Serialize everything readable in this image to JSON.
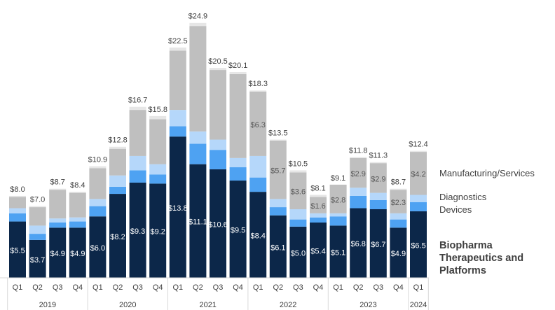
{
  "chart_data": {
    "type": "stacked_bar",
    "categories": [
      "Q1",
      "Q2",
      "Q3",
      "Q4",
      "Q1",
      "Q2",
      "Q3",
      "Q4",
      "Q1",
      "Q2",
      "Q3",
      "Q4",
      "Q1",
      "Q2",
      "Q3",
      "Q4",
      "Q1",
      "Q2",
      "Q3",
      "Q4",
      "Q1"
    ],
    "x_groups": [
      {
        "label": "2019",
        "size": 4
      },
      {
        "label": "2020",
        "size": 4
      },
      {
        "label": "2021",
        "size": 4
      },
      {
        "label": "2022",
        "size": 4
      },
      {
        "label": "2023",
        "size": 4
      },
      {
        "label": "2024",
        "size": 1
      }
    ],
    "ylim": [
      0,
      25.5
    ],
    "series": [
      {
        "name": "Biopharma Therapeutics and Platforms",
        "color": "#0c2749",
        "values": [
          5.5,
          3.7,
          4.9,
          4.9,
          6.0,
          8.2,
          9.3,
          9.2,
          13.8,
          11.1,
          10.6,
          9.5,
          8.4,
          6.1,
          5.0,
          5.4,
          5.1,
          6.8,
          6.7,
          4.9,
          6.5
        ],
        "value_labels": [
          "$5.5",
          "$3.7",
          "$4.9",
          "$4.9",
          "$6.0",
          "$8.2",
          "$9.3",
          "$9.2",
          "$13.8",
          "$11.1",
          "$10.6",
          "$9.5",
          "$8.4",
          "$6.1",
          "$5.0",
          "$5.4",
          "$5.1",
          "$6.8",
          "$6.7",
          "$4.9",
          "$6.5"
        ]
      },
      {
        "name": "Devices",
        "color": "#4ea2f2",
        "values": [
          0.8,
          0.6,
          0.5,
          0.6,
          1.0,
          0.7,
          1.2,
          0.9,
          1.0,
          2.0,
          1.9,
          1.3,
          1.4,
          0.8,
          0.7,
          0.5,
          0.9,
          1.2,
          0.9,
          0.8,
          0.9
        ]
      },
      {
        "name": "Diagnostics",
        "color": "#b5d7fa",
        "values": [
          0.5,
          0.8,
          0.4,
          0.4,
          0.7,
          1.1,
          1.4,
          1.0,
          1.6,
          1.2,
          1.0,
          0.9,
          2.1,
          0.8,
          1.0,
          0.4,
          0.3,
          0.8,
          0.7,
          0.6,
          0.7
        ]
      },
      {
        "name": "Manufacturing/Services",
        "color": "#bfbfbf",
        "values": [
          1.1,
          1.8,
          2.8,
          2.4,
          3.0,
          2.6,
          4.5,
          4.4,
          5.8,
          10.3,
          6.8,
          8.2,
          6.3,
          5.7,
          3.6,
          1.6,
          2.8,
          2.9,
          2.9,
          2.3,
          4.2
        ],
        "value_labels": [
          null,
          null,
          null,
          null,
          null,
          null,
          null,
          null,
          null,
          null,
          null,
          null,
          "$6.3",
          "$5.7",
          "$3.6",
          "$1.6",
          "$2.8",
          "$2.9",
          "$2.9",
          "$2.3",
          "$4.2"
        ]
      }
    ],
    "totals": [
      8.0,
      7.0,
      8.7,
      8.4,
      10.9,
      12.8,
      16.7,
      15.8,
      22.5,
      24.9,
      20.5,
      20.1,
      18.3,
      13.5,
      10.5,
      8.1,
      9.1,
      11.8,
      11.3,
      8.7,
      12.4
    ],
    "total_labels": [
      "$8.0",
      "$7.0",
      "$8.7",
      "$8.4",
      "$10.9",
      "$12.8",
      "$16.7",
      "$15.8",
      "$22.5",
      "$24.9",
      "$20.5",
      "$20.1",
      "$18.3",
      "$13.5",
      "$10.5",
      "$8.1",
      "$9.1",
      "$11.8",
      "$11.3",
      "$8.7",
      "$12.4"
    ],
    "total_color": "#e6e6e6"
  }
}
